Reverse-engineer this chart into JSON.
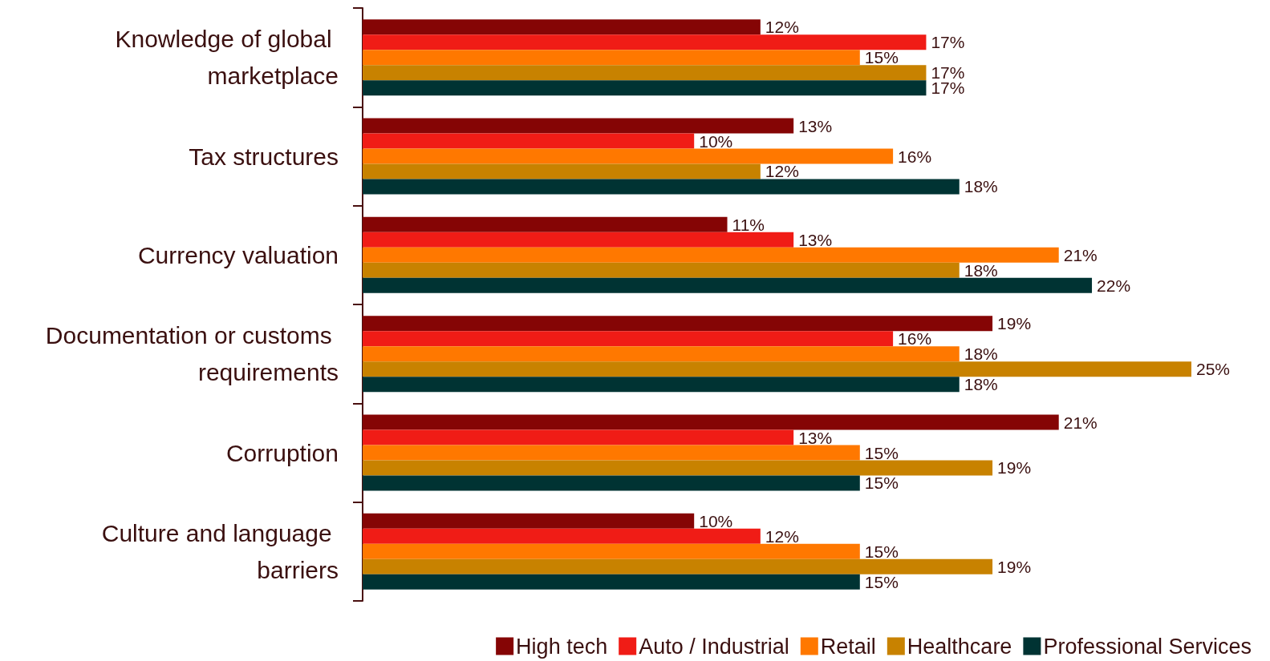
{
  "chart_data": {
    "type": "bar",
    "orientation": "horizontal",
    "categories": [
      "Knowledge of global marketplace",
      "Tax structures",
      "Currency valuation",
      "Documentation or customs requirements",
      "Corruption",
      "Culture and language barriers"
    ],
    "series": [
      {
        "name": "High tech",
        "color": "#850505",
        "values": [
          12,
          13,
          11,
          19,
          21,
          10
        ],
        "value_labels": [
          "12%",
          "13%",
          "11%",
          "19%",
          "21%",
          "10%"
        ]
      },
      {
        "name": "Auto / Industrial",
        "color": "#f01c16",
        "values": [
          17,
          10,
          13,
          16,
          13,
          12
        ],
        "value_labels": [
          "17%",
          "10%",
          "13%",
          "16%",
          "13%",
          "12%"
        ]
      },
      {
        "name": "Retail",
        "color": "#ff7800",
        "values": [
          15,
          16,
          21,
          18,
          15,
          15
        ],
        "value_labels": [
          "15%",
          "16%",
          "21%",
          "18%",
          "15%",
          "15%"
        ]
      },
      {
        "name": "Healthcare",
        "color": "#c88200",
        "values": [
          17,
          12,
          18,
          25,
          19,
          19
        ],
        "value_labels": [
          "17%",
          "12%",
          "18%",
          "25%",
          "19%",
          "19%"
        ]
      },
      {
        "name": "Professional Services",
        "color": "#003333",
        "values": [
          17,
          18,
          22,
          18,
          15,
          15
        ],
        "value_labels": [
          "17%",
          "18%",
          "22%",
          "18%",
          "15%",
          "15%"
        ]
      }
    ],
    "legend": "bottom right"
  }
}
